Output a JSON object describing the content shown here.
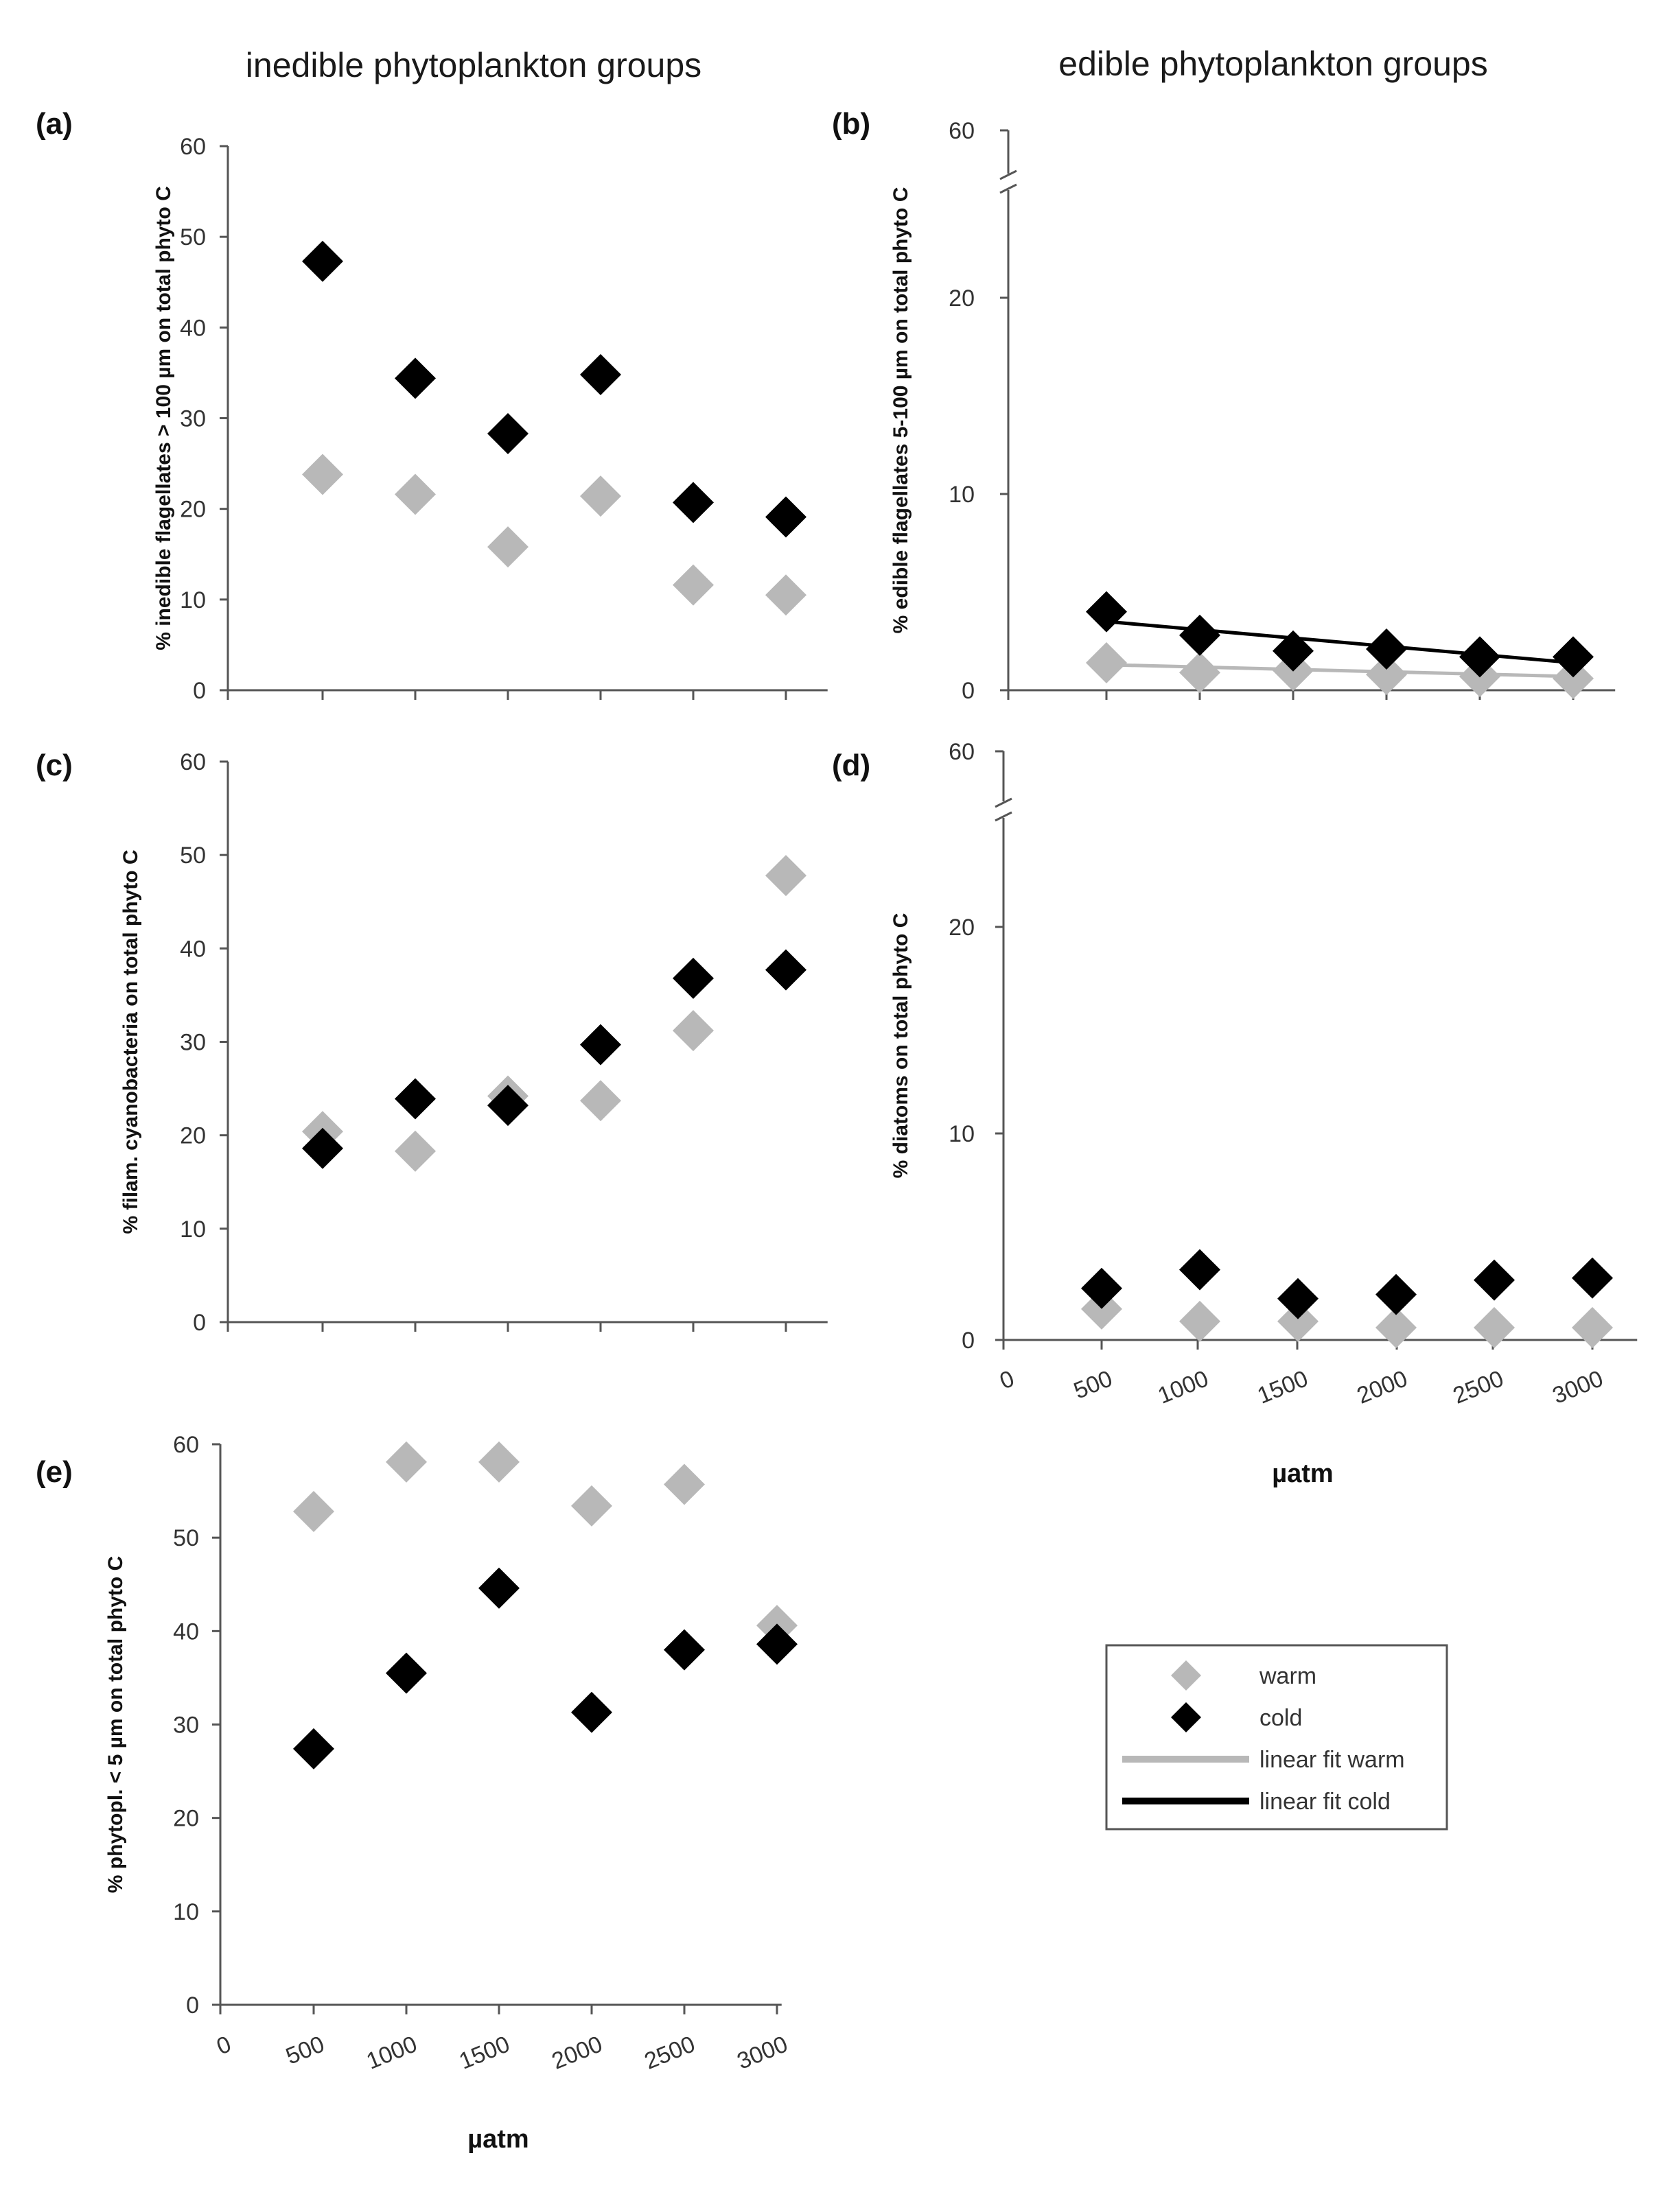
{
  "columns": {
    "left": "inedible phytoplankton groups",
    "right": "edible phytoplankton groups"
  },
  "x_axis_label": "µatm",
  "colors": {
    "warm": "#b8b8b8",
    "cold": "#000000",
    "axis": "#555555"
  },
  "chart_data": [
    {
      "panel": "(a)",
      "type": "scatter",
      "ylabel": "% inedible flagellates > 100 µm on total phyto C",
      "ylim": [
        0,
        60
      ],
      "yticks": [
        0,
        10,
        20,
        30,
        40,
        50,
        60
      ],
      "xlim": [
        0,
        3200
      ],
      "xtick_labels": [],
      "series": [
        {
          "name": "warm",
          "x": [
            500,
            1000,
            1500,
            2000,
            2500,
            3000
          ],
          "y": [
            23.8,
            21.6,
            15.8,
            21.4,
            11.6,
            10.5
          ]
        },
        {
          "name": "cold",
          "x": [
            500,
            1000,
            1500,
            2000,
            2500,
            3000
          ],
          "y": [
            47.3,
            34.4,
            28.3,
            34.8,
            20.7,
            19.1
          ]
        }
      ]
    },
    {
      "panel": "(b)",
      "type": "scatter",
      "ylabel": "% edible flagellates 5-100 µm on total phyto C",
      "ylim": [
        0,
        25
      ],
      "yticks": [
        0,
        10,
        20
      ],
      "ybreak_label": "60",
      "xlim": [
        0,
        3200
      ],
      "xtick_labels": [],
      "series": [
        {
          "name": "warm",
          "x": [
            500,
            1000,
            1500,
            2000,
            2500,
            3000
          ],
          "y": [
            1.4,
            0.9,
            1.0,
            0.8,
            0.7,
            0.6
          ]
        },
        {
          "name": "cold",
          "x": [
            500,
            1000,
            1500,
            2000,
            2500,
            3000
          ],
          "y": [
            4.0,
            2.8,
            2.0,
            2.1,
            1.7,
            1.7
          ]
        }
      ],
      "fits": [
        {
          "name": "linear fit warm",
          "x": [
            500,
            3000
          ],
          "y": [
            1.3,
            0.7
          ]
        },
        {
          "name": "linear fit cold",
          "x": [
            500,
            3000
          ],
          "y": [
            3.5,
            1.4
          ]
        }
      ]
    },
    {
      "panel": "(c)",
      "type": "scatter",
      "ylabel": "% filam. cyanobacteria on total phyto C",
      "ylim": [
        0,
        60
      ],
      "yticks": [
        0,
        10,
        20,
        30,
        40,
        50,
        60
      ],
      "xlim": [
        0,
        3200
      ],
      "xtick_labels": [],
      "series": [
        {
          "name": "warm",
          "x": [
            500,
            1000,
            1500,
            2000,
            2500,
            3000
          ],
          "y": [
            20.4,
            18.3,
            24.2,
            23.7,
            31.2,
            47.8
          ]
        },
        {
          "name": "cold",
          "x": [
            500,
            1000,
            1500,
            2000,
            2500,
            3000
          ],
          "y": [
            18.6,
            23.9,
            23.2,
            29.7,
            36.8,
            37.7
          ]
        }
      ]
    },
    {
      "panel": "(d)",
      "type": "scatter",
      "ylabel": "% diatoms on total phyto C",
      "ylim": [
        0,
        25
      ],
      "yticks": [
        0,
        10,
        20
      ],
      "ybreak_label": "60",
      "xlim": [
        0,
        3200
      ],
      "xtick_labels": [
        "0",
        "500",
        "1000",
        "1500",
        "2000",
        "2500",
        "3000"
      ],
      "series": [
        {
          "name": "warm",
          "x": [
            500,
            1000,
            1500,
            2000,
            2500,
            3000
          ],
          "y": [
            1.5,
            0.9,
            0.9,
            0.6,
            0.6,
            0.6
          ]
        },
        {
          "name": "cold",
          "x": [
            500,
            1000,
            1500,
            2000,
            2500,
            3000
          ],
          "y": [
            2.5,
            3.4,
            2.0,
            2.2,
            2.9,
            3.0
          ]
        }
      ]
    },
    {
      "panel": "(e)",
      "type": "scatter",
      "ylabel": "% phytopl. < 5 µm on total phyto C",
      "ylim": [
        0,
        60
      ],
      "yticks": [
        0,
        10,
        20,
        30,
        40,
        50,
        60
      ],
      "xlim": [
        0,
        3000
      ],
      "xtick_labels": [
        "0",
        "500",
        "1000",
        "1500",
        "2000",
        "2500",
        "3000"
      ],
      "series": [
        {
          "name": "warm",
          "x": [
            500,
            1000,
            1500,
            2000,
            2500,
            3000
          ],
          "y": [
            52.8,
            58.1,
            58.1,
            53.4,
            55.7,
            40.6
          ]
        },
        {
          "name": "cold",
          "x": [
            500,
            1000,
            1500,
            2000,
            2500,
            3000
          ],
          "y": [
            27.4,
            35.5,
            44.6,
            31.3,
            38.0,
            38.6
          ]
        }
      ]
    }
  ],
  "legend": {
    "entries": [
      {
        "label": "warm",
        "kind": "marker",
        "color": "#b8b8b8"
      },
      {
        "label": "cold",
        "kind": "marker",
        "color": "#000000"
      },
      {
        "label": "linear fit warm",
        "kind": "line",
        "color": "#b8b8b8"
      },
      {
        "label": "linear fit cold",
        "kind": "line",
        "color": "#000000"
      }
    ]
  }
}
